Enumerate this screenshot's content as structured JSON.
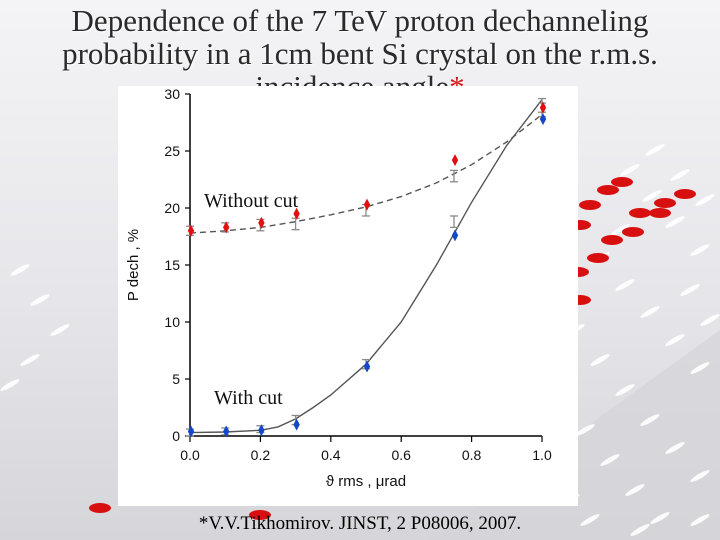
{
  "slide": {
    "title_lines": [
      "Dependence of the 7 TeV proton dechanneling",
      "probability in a 1cm bent Si crystal on the r.m.s.",
      "incidence angle"
    ],
    "title_asterisk": "*",
    "footnote": "*V.V.Tikhomirov. JINST, 2 P08006, 2007."
  },
  "chart_data": {
    "type": "scatter",
    "title": "",
    "xlabel": "ϑ rms , μrad",
    "ylabel": "P dech , %",
    "xlim": [
      0.0,
      1.0
    ],
    "ylim": [
      0,
      30
    ],
    "xticks": [
      "0.0",
      "0.2",
      "0.4",
      "0.6",
      "0.8",
      "1.0"
    ],
    "yticks": [
      "0",
      "5",
      "10",
      "15",
      "20",
      "25",
      "30"
    ],
    "annotations": [
      "Without cut",
      "With cut"
    ],
    "series": [
      {
        "group": "without-cut",
        "marker": "red-diamond",
        "color": "#e01010",
        "x": [
          0.0,
          0.1,
          0.2,
          0.3,
          0.5,
          0.75,
          1.0
        ],
        "y": [
          18.0,
          18.3,
          18.7,
          19.5,
          20.3,
          24.2,
          28.8
        ]
      },
      {
        "group": "without-cut",
        "marker": "grey-errorbar",
        "color": "#8a8a8a",
        "x": [
          0.0,
          0.1,
          0.2,
          0.3,
          0.5,
          0.75,
          1.0
        ],
        "y": [
          18.0,
          18.3,
          18.5,
          18.6,
          19.8,
          22.8,
          29.0
        ],
        "err": [
          0.4,
          0.4,
          0.5,
          0.5,
          0.5,
          0.5,
          0.6
        ]
      },
      {
        "group": "with-cut",
        "marker": "blue-diamond",
        "color": "#1448c8",
        "x": [
          0.0,
          0.1,
          0.2,
          0.3,
          0.5,
          0.75,
          1.0
        ],
        "y": [
          0.4,
          0.4,
          0.5,
          1.0,
          6.1,
          17.6,
          27.8
        ]
      },
      {
        "group": "with-cut",
        "marker": "grey-errorbar",
        "color": "#8a8a8a",
        "x": [
          0.0,
          0.1,
          0.2,
          0.3,
          0.5,
          0.75,
          1.0
        ],
        "y": [
          0.3,
          0.4,
          0.6,
          1.4,
          6.3,
          18.8,
          28.6
        ],
        "err": [
          0.3,
          0.3,
          0.3,
          0.4,
          0.4,
          0.5,
          0.6
        ]
      }
    ],
    "fit_curves": [
      {
        "group": "without-cut",
        "style": "dashed",
        "x": [
          0.0,
          0.1,
          0.2,
          0.3,
          0.4,
          0.5,
          0.6,
          0.7,
          0.8,
          0.9,
          1.0
        ],
        "y": [
          17.8,
          18.0,
          18.3,
          18.8,
          19.4,
          20.1,
          21.0,
          22.2,
          23.8,
          25.8,
          28.2
        ]
      },
      {
        "group": "with-cut",
        "style": "solid",
        "x": [
          0.0,
          0.1,
          0.2,
          0.25,
          0.3,
          0.35,
          0.4,
          0.5,
          0.6,
          0.7,
          0.8,
          0.9,
          1.0
        ],
        "y": [
          0.3,
          0.35,
          0.5,
          0.8,
          1.5,
          2.5,
          3.6,
          6.3,
          10.0,
          15.0,
          20.5,
          25.5,
          29.5
        ]
      }
    ]
  },
  "background": {
    "ramp_color": "#d4d4d8",
    "dash_color": "#ffffff",
    "dot_color": "#d80f0f"
  }
}
